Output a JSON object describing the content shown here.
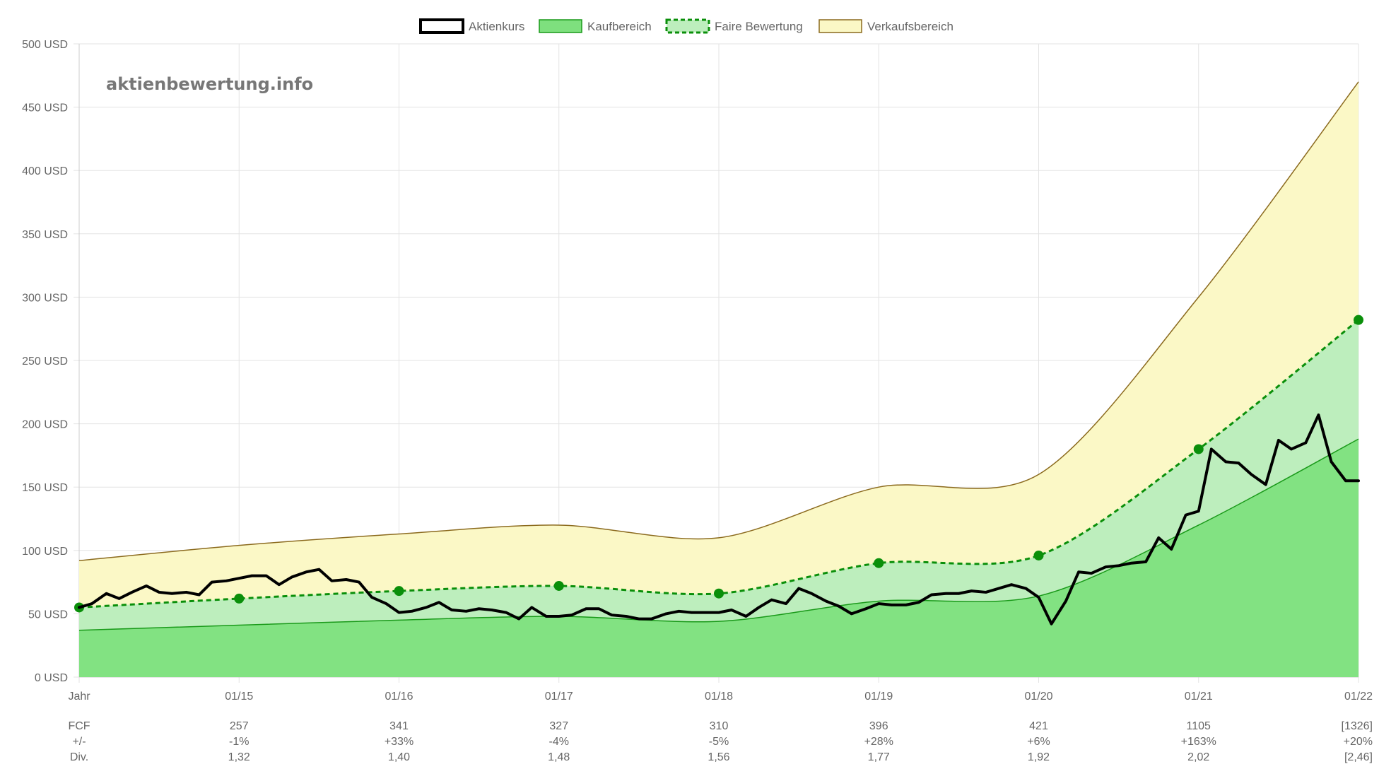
{
  "watermark": "aktienbewertung.info",
  "legend": [
    {
      "key": "price",
      "label": "Aktienkurs"
    },
    {
      "key": "buy",
      "label": "Kaufbereich"
    },
    {
      "key": "fair",
      "label": "Faire Bewertung"
    },
    {
      "key": "sell",
      "label": "Verkaufsbereich"
    }
  ],
  "colors": {
    "price": "#000000",
    "buy_fill": "#7ee07e",
    "buy_line": "#1a9a1a",
    "fair_fill": "#bdeebd",
    "fair_line": "#0a8f0a",
    "sell_fill": "#fbf8c6",
    "sell_line": "#8b6a1e",
    "grid": "#e3e3e3",
    "text": "#666666"
  },
  "chart_data": {
    "type": "area",
    "y_unit_suffix": " USD",
    "ylim": [
      0,
      500
    ],
    "y_ticks": [
      0,
      50,
      100,
      150,
      200,
      250,
      300,
      350,
      400,
      450,
      500
    ],
    "y_tick_labels": [
      "0 USD",
      "50 USD",
      "100 USD",
      "150 USD",
      "200 USD",
      "250 USD",
      "300 USD",
      "350 USD",
      "400 USD",
      "450 USD",
      "500 USD"
    ],
    "x_min": 2014.0,
    "x_max": 2022.0,
    "x_ticks": [
      {
        "x": 2014.0,
        "label": "Jahr"
      },
      {
        "x": 2015.0,
        "label": "01/15"
      },
      {
        "x": 2016.0,
        "label": "01/16"
      },
      {
        "x": 2017.0,
        "label": "01/17"
      },
      {
        "x": 2018.0,
        "label": "01/18"
      },
      {
        "x": 2019.0,
        "label": "01/19"
      },
      {
        "x": 2020.0,
        "label": "01/20"
      },
      {
        "x": 2021.0,
        "label": "01/21"
      },
      {
        "x": 2022.0,
        "label": "01/22"
      }
    ],
    "series": [
      {
        "name": "Verkaufsbereich",
        "x": [
          2014,
          2015,
          2016,
          2017,
          2018,
          2019,
          2020,
          2021,
          2022
        ],
        "values": [
          92,
          104,
          113,
          120,
          110,
          150,
          160,
          300,
          470
        ]
      },
      {
        "name": "Faire Bewertung",
        "x": [
          2014,
          2015,
          2016,
          2017,
          2018,
          2019,
          2020,
          2021,
          2022
        ],
        "values": [
          55,
          62,
          68,
          72,
          66,
          90,
          96,
          180,
          282
        ]
      },
      {
        "name": "Kaufbereich",
        "x": [
          2014,
          2015,
          2016,
          2017,
          2018,
          2019,
          2020,
          2021,
          2022
        ],
        "values": [
          37,
          41,
          45,
          48,
          44,
          60,
          64,
          120,
          188
        ]
      },
      {
        "name": "Aktienkurs",
        "x": [
          2014.0,
          2014.08,
          2014.17,
          2014.25,
          2014.33,
          2014.42,
          2014.5,
          2014.58,
          2014.67,
          2014.75,
          2014.83,
          2014.92,
          2015.0,
          2015.08,
          2015.17,
          2015.25,
          2015.33,
          2015.42,
          2015.5,
          2015.58,
          2015.67,
          2015.75,
          2015.83,
          2015.92,
          2016.0,
          2016.08,
          2016.17,
          2016.25,
          2016.33,
          2016.42,
          2016.5,
          2016.58,
          2016.67,
          2016.75,
          2016.83,
          2016.92,
          2017.0,
          2017.08,
          2017.17,
          2017.25,
          2017.33,
          2017.42,
          2017.5,
          2017.58,
          2017.67,
          2017.75,
          2017.83,
          2017.92,
          2018.0,
          2018.08,
          2018.17,
          2018.25,
          2018.33,
          2018.42,
          2018.5,
          2018.58,
          2018.67,
          2018.75,
          2018.83,
          2018.92,
          2019.0,
          2019.08,
          2019.17,
          2019.25,
          2019.33,
          2019.42,
          2019.5,
          2019.58,
          2019.67,
          2019.75,
          2019.83,
          2019.92,
          2020.0,
          2020.08,
          2020.17,
          2020.25,
          2020.33,
          2020.42,
          2020.5,
          2020.58,
          2020.67,
          2020.75,
          2020.83,
          2020.92,
          2021.0,
          2021.08,
          2021.17,
          2021.25,
          2021.33,
          2021.42,
          2021.5,
          2021.58,
          2021.67,
          2021.75,
          2021.83,
          2021.92,
          2022.0
        ],
        "values": [
          55,
          58,
          66,
          62,
          67,
          72,
          67,
          66,
          67,
          65,
          75,
          76,
          78,
          80,
          80,
          73,
          79,
          83,
          85,
          76,
          77,
          75,
          63,
          58,
          51,
          52,
          55,
          59,
          53,
          52,
          54,
          53,
          51,
          46,
          55,
          48,
          48,
          49,
          54,
          54,
          49,
          48,
          46,
          46,
          50,
          52,
          51,
          51,
          51,
          53,
          48,
          55,
          61,
          58,
          70,
          66,
          60,
          56,
          50,
          54,
          58,
          57,
          57,
          59,
          65,
          66,
          66,
          68,
          67,
          70,
          73,
          70,
          63,
          42,
          60,
          83,
          82,
          87,
          88,
          90,
          91,
          110,
          101,
          128,
          131,
          180,
          170,
          169,
          160,
          152,
          187,
          180,
          185,
          207,
          170,
          155,
          155
        ]
      }
    ]
  },
  "table": {
    "rows": [
      {
        "label": "FCF",
        "values": [
          "257",
          "341",
          "327",
          "310",
          "396",
          "421",
          "1105",
          "[1326]"
        ]
      },
      {
        "label": "+/-",
        "values": [
          "-1%",
          "+33%",
          "-4%",
          "-5%",
          "+28%",
          "+6%",
          "+163%",
          "+20%"
        ]
      },
      {
        "label": "Div.",
        "values": [
          "1,32",
          "1,40",
          "1,48",
          "1,56",
          "1,77",
          "1,92",
          "2,02",
          "[2,46]"
        ]
      }
    ]
  }
}
